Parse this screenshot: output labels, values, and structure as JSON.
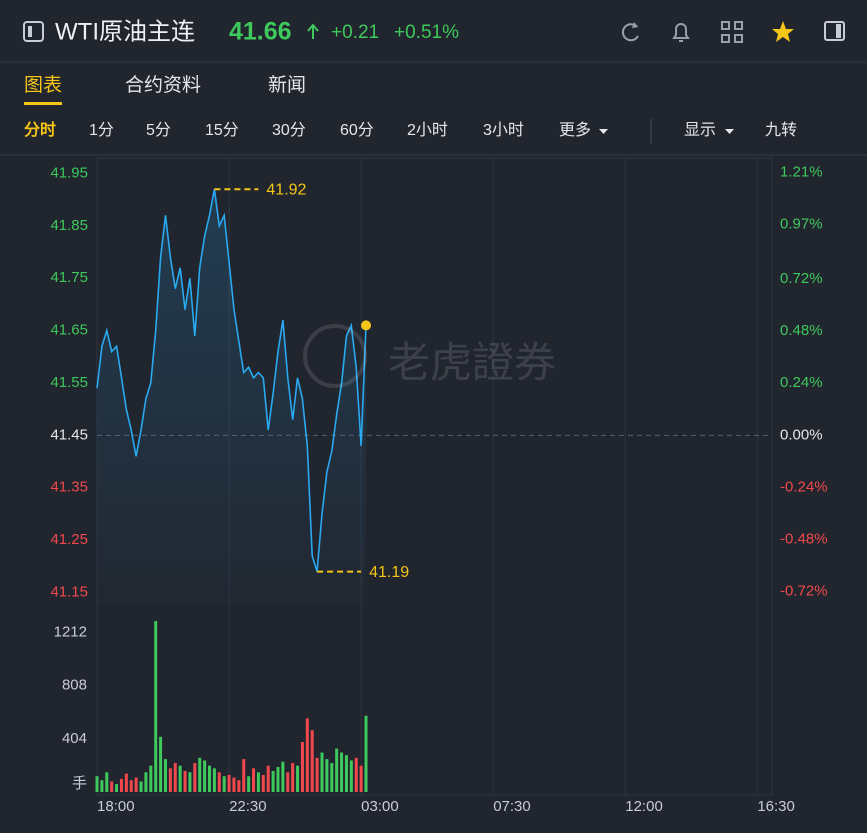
{
  "header": {
    "symbol": "WTI原油主连",
    "price": "41.66",
    "change": "+0.21",
    "change_pct": "+0.51%"
  },
  "tabs": [
    "图表",
    "合约资料",
    "新闻"
  ],
  "active_tab": 0,
  "toolbar_left": [
    "分时",
    "1分",
    "5分",
    "15分",
    "30分",
    "60分",
    "2小时",
    "3小时",
    "更多"
  ],
  "toolbar_right": [
    "显示",
    "九转"
  ],
  "watermark": "老虎證券",
  "chart_data": [
    {
      "type": "line",
      "color": "#29a9f0",
      "up_color": "#3ec95c",
      "down_color": "#f0484c",
      "last_marker_color": "#f5c518",
      "annotation_color": "#f5c518",
      "x": [
        0,
        10,
        20,
        30,
        40,
        50,
        60,
        70,
        80,
        90,
        100,
        110,
        120,
        130,
        140,
        150,
        160,
        170,
        180,
        190,
        200,
        210,
        220,
        230,
        240,
        250,
        260,
        270,
        280,
        290,
        300,
        310,
        320,
        330,
        340,
        350,
        360,
        370,
        380,
        390,
        400,
        410,
        420,
        430,
        440,
        450,
        460,
        470,
        480,
        490,
        500,
        510,
        520,
        530,
        540,
        550
      ],
      "values": [
        41.54,
        41.62,
        41.65,
        41.61,
        41.62,
        41.56,
        41.5,
        41.46,
        41.41,
        41.46,
        41.52,
        41.55,
        41.65,
        41.79,
        41.87,
        41.79,
        41.73,
        41.77,
        41.69,
        41.75,
        41.64,
        41.77,
        41.83,
        41.87,
        41.92,
        41.85,
        41.87,
        41.78,
        41.69,
        41.63,
        41.57,
        41.58,
        41.56,
        41.57,
        41.56,
        41.46,
        41.53,
        41.61,
        41.67,
        41.56,
        41.48,
        41.56,
        41.52,
        41.43,
        41.22,
        41.19,
        41.3,
        41.38,
        41.42,
        41.49,
        41.55,
        41.64,
        41.66,
        41.58,
        41.43,
        41.66
      ],
      "xlim": [
        0,
        1380
      ],
      "ylim": [
        41.13,
        41.97
      ],
      "yticks": [
        41.95,
        41.85,
        41.75,
        41.65,
        41.55,
        41.45,
        41.35,
        41.25,
        41.15
      ],
      "y2lim": [
        -0.772,
        1.2545
      ],
      "y2ticks": [
        {
          "value": 1.21,
          "label": "1.21%"
        },
        {
          "value": 0.97,
          "label": "0.97%"
        },
        {
          "value": 0.72,
          "label": "0.72%"
        },
        {
          "value": 0.48,
          "label": "0.48%"
        },
        {
          "value": 0.24,
          "label": "0.24%"
        },
        {
          "value": 0,
          "label": "0.00%"
        },
        {
          "value": -0.24,
          "label": "-0.24%"
        },
        {
          "value": -0.48,
          "label": "-0.48%"
        },
        {
          "value": -0.72,
          "label": "-0.72%"
        }
      ],
      "reference_line": 41.45,
      "annotations": [
        {
          "text": "41.92",
          "x": 240,
          "y": 41.92
        },
        {
          "text": "41.19",
          "x": 450,
          "y": 41.19
        }
      ]
    },
    {
      "type": "bar",
      "ylabel": "手",
      "up_color": "#3ec95c",
      "down_color": "#f0484c",
      "x": [
        0,
        10,
        20,
        30,
        40,
        50,
        60,
        70,
        80,
        90,
        100,
        110,
        120,
        130,
        140,
        150,
        160,
        170,
        180,
        190,
        200,
        210,
        220,
        230,
        240,
        250,
        260,
        270,
        280,
        290,
        300,
        310,
        320,
        330,
        340,
        350,
        360,
        370,
        380,
        390,
        400,
        410,
        420,
        430,
        440,
        450,
        460,
        470,
        480,
        490,
        500,
        510,
        520,
        530,
        540,
        550
      ],
      "values": [
        120,
        90,
        150,
        80,
        60,
        100,
        140,
        90,
        110,
        80,
        150,
        200,
        1300,
        420,
        250,
        180,
        220,
        200,
        160,
        150,
        220,
        260,
        240,
        200,
        180,
        150,
        120,
        130,
        110,
        90,
        250,
        120,
        180,
        150,
        130,
        200,
        160,
        190,
        230,
        150,
        220,
        200,
        380,
        560,
        470,
        260,
        300,
        250,
        220,
        330,
        300,
        280,
        240,
        260,
        200,
        580
      ],
      "xlim": [
        0,
        1380
      ],
      "ylim": [
        0,
        1460
      ],
      "yticks": [
        404,
        808,
        1212
      ],
      "xticks": [
        {
          "value": 0,
          "label": "18:00"
        },
        {
          "value": 270,
          "label": "22:30"
        },
        {
          "value": 540,
          "label": "03:00"
        },
        {
          "value": 810,
          "label": "07:30"
        },
        {
          "value": 1080,
          "label": "12:00"
        },
        {
          "value": 1350,
          "label": "16:30"
        }
      ]
    }
  ]
}
